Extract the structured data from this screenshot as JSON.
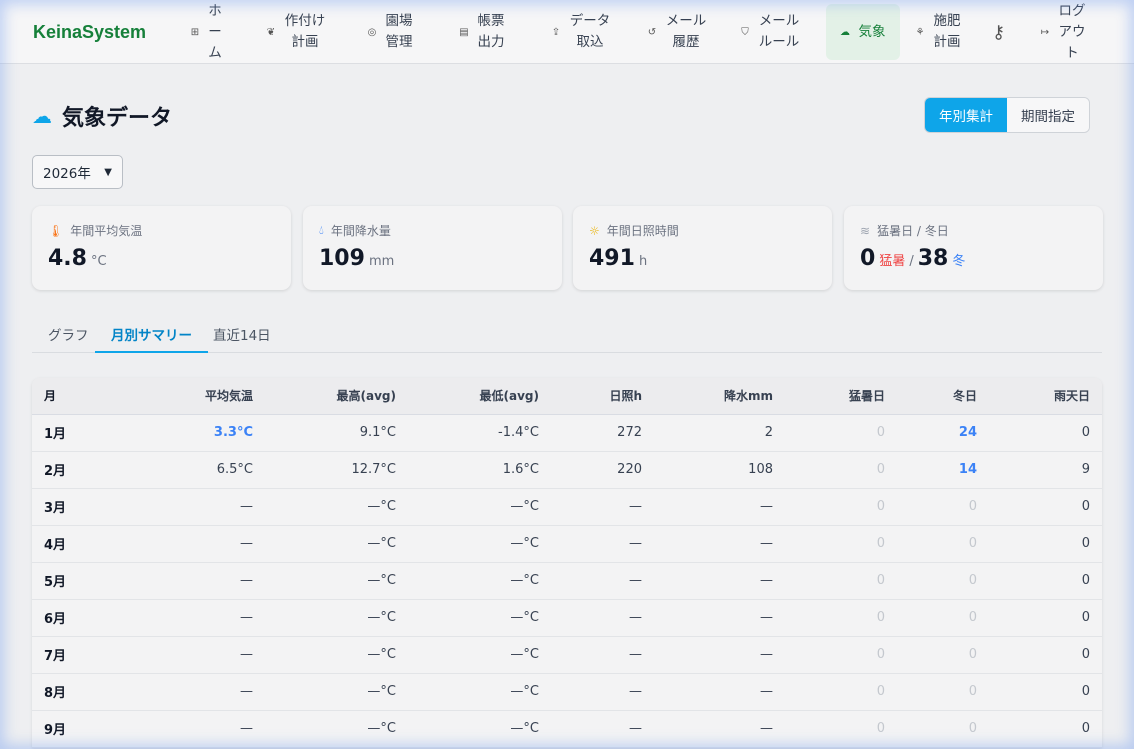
{
  "nav": {
    "logo": "KeinaSystem",
    "items": [
      {
        "label": "ホーム",
        "icon": "grid-icon"
      },
      {
        "label": "作付け計画",
        "icon": "seed-icon"
      },
      {
        "label": "園場管理",
        "icon": "map-pin-icon"
      },
      {
        "label": "帳票出力",
        "icon": "document-icon"
      },
      {
        "label": "データ取込",
        "icon": "upload-icon"
      },
      {
        "label": "メール履歴",
        "icon": "history-icon"
      },
      {
        "label": "メールルール",
        "icon": "shield-icon"
      },
      {
        "label": "気象",
        "icon": "cloud-icon",
        "active": true
      },
      {
        "label": "施肥計画",
        "icon": "sprout-icon"
      },
      {
        "label": "",
        "icon": "key-icon"
      },
      {
        "label": "ログアウト",
        "icon": "logout-icon"
      }
    ]
  },
  "page": {
    "title": "気象データ",
    "mode_buttons": [
      "年別集計",
      "期間指定"
    ],
    "active_mode": "年別集計",
    "year_select": "2026年"
  },
  "cards": [
    {
      "label": "年間平均気温",
      "value": "4.8",
      "unit": "°C",
      "icon": "thermometer-icon"
    },
    {
      "label": "年間降水量",
      "value": "109",
      "unit": "mm",
      "icon": "droplets-icon"
    },
    {
      "label": "年間日照時間",
      "value": "491",
      "unit": "h",
      "icon": "sun-icon"
    },
    {
      "label": "猛暑日 / 冬日",
      "hot": "0",
      "hot_label": "猛暑",
      "sep": "/",
      "cold": "38",
      "cold_label": "冬",
      "icon": "wind-icon"
    }
  ],
  "tabs": [
    "グラフ",
    "月別サマリー",
    "直近14日"
  ],
  "active_tab": "月別サマリー",
  "table": {
    "headers": [
      "月",
      "平均気温",
      "最高(avg)",
      "最低(avg)",
      "日照h",
      "降水mm",
      "猛暑日",
      "冬日",
      "雨天日"
    ],
    "rows": [
      [
        "1月",
        "3.3°C",
        "9.1°C",
        "-1.4°C",
        "272",
        "2",
        "0",
        "24",
        "0"
      ],
      [
        "2月",
        "6.5°C",
        "12.7°C",
        "1.6°C",
        "220",
        "108",
        "0",
        "14",
        "9"
      ],
      [
        "3月",
        "—",
        "—°C",
        "—°C",
        "—",
        "—",
        "0",
        "0",
        "0"
      ],
      [
        "4月",
        "—",
        "—°C",
        "—°C",
        "—",
        "—",
        "0",
        "0",
        "0"
      ],
      [
        "5月",
        "—",
        "—°C",
        "—°C",
        "—",
        "—",
        "0",
        "0",
        "0"
      ],
      [
        "6月",
        "—",
        "—°C",
        "—°C",
        "—",
        "—",
        "0",
        "0",
        "0"
      ],
      [
        "7月",
        "—",
        "—°C",
        "—°C",
        "—",
        "—",
        "0",
        "0",
        "0"
      ],
      [
        "8月",
        "—",
        "—°C",
        "—°C",
        "—",
        "—",
        "0",
        "0",
        "0"
      ],
      [
        "9月",
        "—",
        "—°C",
        "—°C",
        "—",
        "—",
        "0",
        "0",
        "0"
      ]
    ]
  },
  "colors": {
    "accent": "#0ea5e9",
    "brand": "#16803a",
    "hot": "#ef4444",
    "cold": "#3b82f6"
  }
}
